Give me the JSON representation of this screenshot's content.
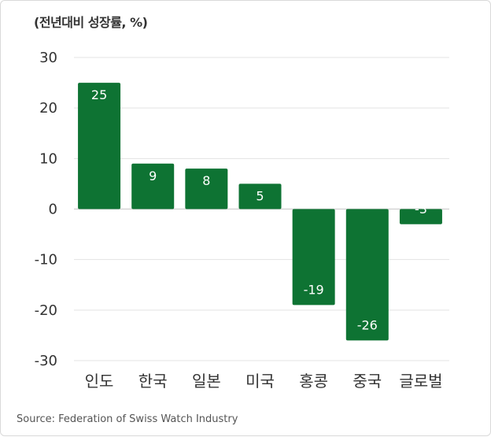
{
  "chart_data": {
    "type": "bar",
    "unit_label": "(전년대비 성장률, %)",
    "categories": [
      "인도",
      "한국",
      "일본",
      "미국",
      "홍콩",
      "중국",
      "글로벌"
    ],
    "values": [
      25,
      9,
      8,
      5,
      -19,
      -26,
      -3
    ],
    "data_labels": [
      "25",
      "9",
      "8",
      "5",
      "-19",
      "-26",
      "-3"
    ],
    "ylim": [
      -30,
      30
    ],
    "yticks": [
      30,
      20,
      10,
      0,
      -10,
      -20,
      -30
    ],
    "grid": true,
    "bar_color": "#0e7333",
    "source": "Source: Federation of Swiss Watch Industry"
  }
}
